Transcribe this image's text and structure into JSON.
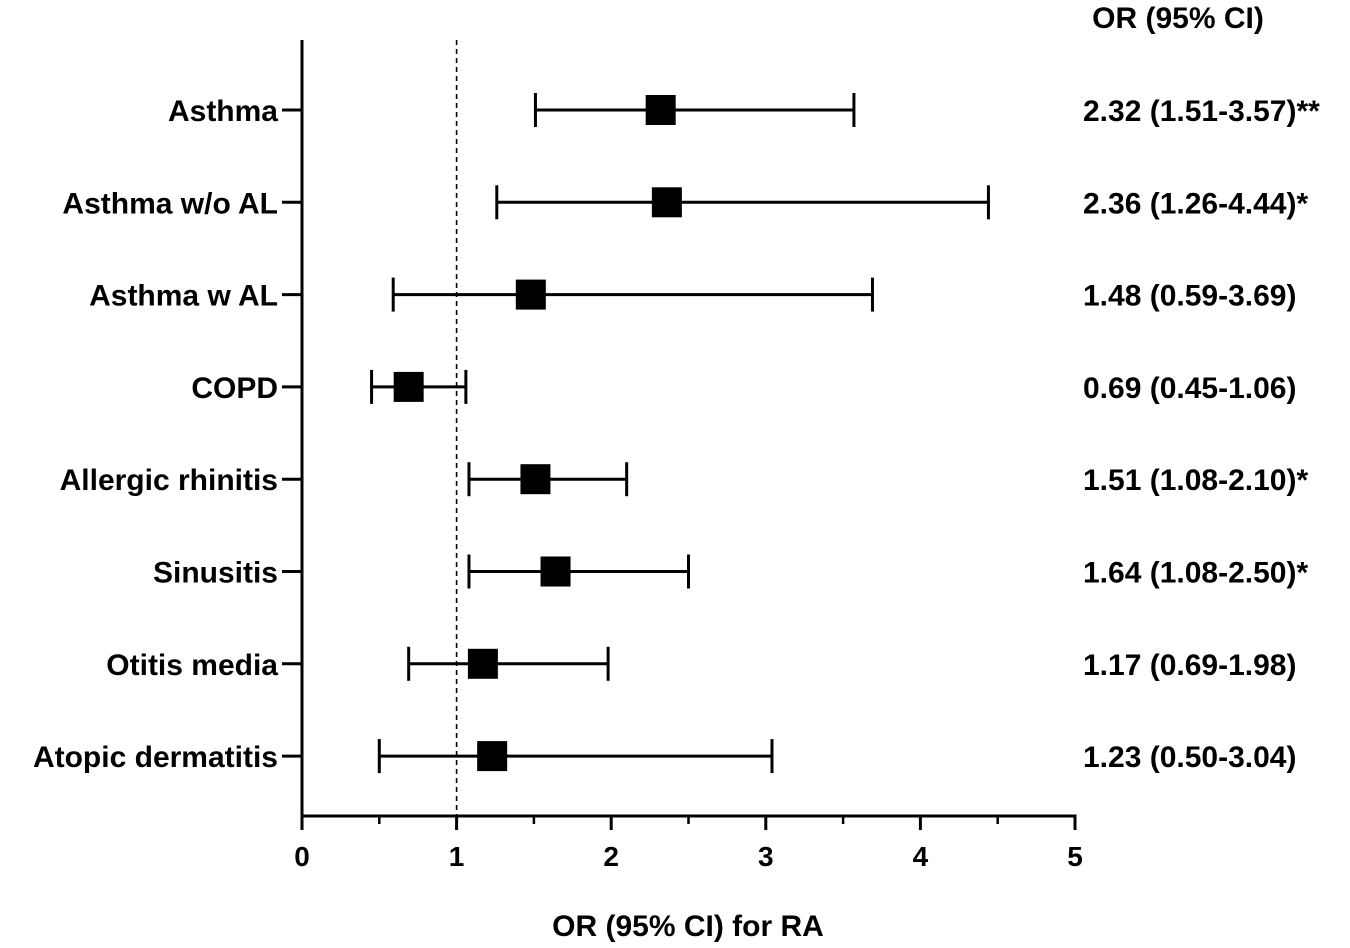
{
  "chart_data": {
    "type": "forest",
    "title": "",
    "xlabel": "OR (95% CI) for RA",
    "ylabel": "",
    "xlim": [
      0,
      5
    ],
    "xticks": [
      0,
      1,
      2,
      3,
      4,
      5
    ],
    "minor_tick_step": 0.5,
    "reference_line": 1,
    "estimate_header": "OR (95% CI)",
    "rows": [
      {
        "label": "Asthma",
        "or": 2.32,
        "lower": 1.51,
        "upper": 3.57,
        "text": "2.32 (1.51-3.57)**"
      },
      {
        "label": "Asthma w/o AL",
        "or": 2.36,
        "lower": 1.26,
        "upper": 4.44,
        "text": "2.36 (1.26-4.44)*"
      },
      {
        "label": "Asthma w AL",
        "or": 1.48,
        "lower": 0.59,
        "upper": 3.69,
        "text": "1.48 (0.59-3.69)"
      },
      {
        "label": "COPD",
        "or": 0.69,
        "lower": 0.45,
        "upper": 1.06,
        "text": "0.69 (0.45-1.06)"
      },
      {
        "label": "Allergic rhinitis",
        "or": 1.51,
        "lower": 1.08,
        "upper": 2.1,
        "text": "1.51 (1.08-2.10)*"
      },
      {
        "label": "Sinusitis",
        "or": 1.64,
        "lower": 1.08,
        "upper": 2.5,
        "text": "1.64 (1.08-2.50)*"
      },
      {
        "label": "Otitis media",
        "or": 1.17,
        "lower": 0.69,
        "upper": 1.98,
        "text": "1.17 (0.69-1.98)"
      },
      {
        "label": "Atopic dermatitis",
        "or": 1.23,
        "lower": 0.5,
        "upper": 3.04,
        "text": "1.23 (0.50-3.04)"
      }
    ]
  }
}
